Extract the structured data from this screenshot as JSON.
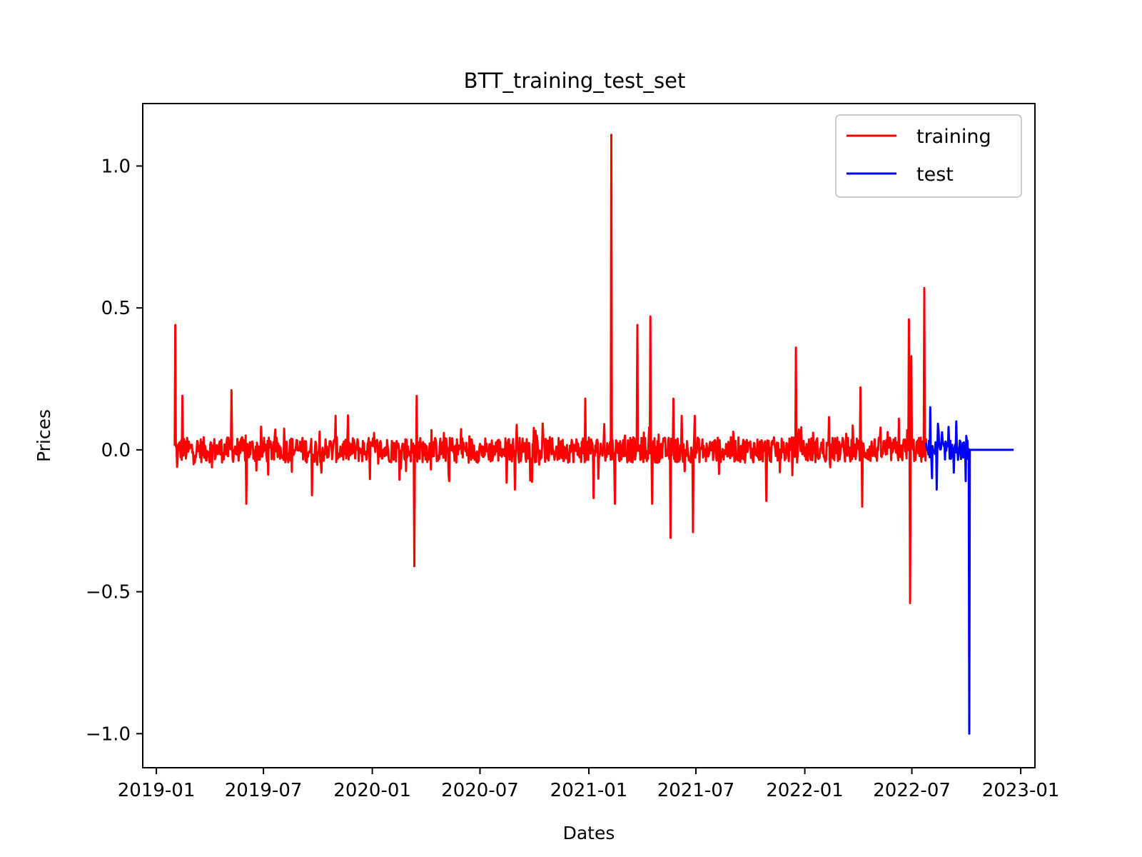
{
  "chart_data": {
    "type": "line",
    "title": "BTT_training_test_set",
    "xlabel": "Dates",
    "ylabel": "Prices",
    "ylim": [
      -1.12,
      1.22
    ],
    "xlim": [
      "2018-12-09",
      "2023-01-25"
    ],
    "x_ticks": [
      "2019-01",
      "2019-07",
      "2020-01",
      "2020-07",
      "2021-01",
      "2021-07",
      "2022-01",
      "2022-07",
      "2023-01"
    ],
    "y_ticks": [
      1.0,
      0.5,
      0.0,
      -0.5,
      -1.0
    ],
    "y_tick_labels": [
      "1.0",
      "0.5",
      "0.0",
      "−0.5",
      "−1.0"
    ],
    "grid": false,
    "legend_position": "top-right",
    "series": [
      {
        "name": "training",
        "color": "#ff0000",
        "x_start": "2019-02-01",
        "x_end": "2022-07-25",
        "spikes": [
          {
            "date": "2019-02-02",
            "value": 0.44
          },
          {
            "date": "2019-02-05",
            "value": -0.06
          },
          {
            "date": "2019-02-14",
            "value": 0.19
          },
          {
            "date": "2019-05-08",
            "value": 0.21
          },
          {
            "date": "2019-06-02",
            "value": -0.19
          },
          {
            "date": "2019-09-21",
            "value": -0.16
          },
          {
            "date": "2019-10-31",
            "value": 0.12
          },
          {
            "date": "2020-03-12",
            "value": -0.41
          },
          {
            "date": "2020-03-16",
            "value": 0.19
          },
          {
            "date": "2020-05-10",
            "value": -0.11
          },
          {
            "date": "2020-08-29",
            "value": -0.14
          },
          {
            "date": "2020-12-26",
            "value": 0.18
          },
          {
            "date": "2021-01-09",
            "value": -0.17
          },
          {
            "date": "2021-02-08",
            "value": 1.11
          },
          {
            "date": "2021-02-14",
            "value": -0.19
          },
          {
            "date": "2021-03-24",
            "value": 0.44
          },
          {
            "date": "2021-04-15",
            "value": 0.47
          },
          {
            "date": "2021-04-18",
            "value": -0.19
          },
          {
            "date": "2021-05-19",
            "value": -0.31
          },
          {
            "date": "2021-05-24",
            "value": 0.18
          },
          {
            "date": "2021-06-26",
            "value": -0.29
          },
          {
            "date": "2021-06-29",
            "value": 0.12
          },
          {
            "date": "2021-10-28",
            "value": -0.18
          },
          {
            "date": "2021-12-17",
            "value": 0.36
          },
          {
            "date": "2022-04-05",
            "value": 0.22
          },
          {
            "date": "2022-04-08",
            "value": -0.2
          },
          {
            "date": "2022-06-09",
            "value": 0.11
          },
          {
            "date": "2022-06-26",
            "value": 0.46
          },
          {
            "date": "2022-06-28",
            "value": -0.54
          },
          {
            "date": "2022-06-30",
            "value": 0.33
          },
          {
            "date": "2022-07-22",
            "value": 0.57
          }
        ]
      },
      {
        "name": "test",
        "color": "#0000ff",
        "x_start": "2022-07-25",
        "x_end": "2022-12-20",
        "spikes": [
          {
            "date": "2022-08-01",
            "value": 0.15
          },
          {
            "date": "2022-08-04",
            "value": -0.1
          },
          {
            "date": "2022-08-12",
            "value": -0.14
          },
          {
            "date": "2022-08-15",
            "value": 0.07
          },
          {
            "date": "2022-09-10",
            "value": -0.08
          },
          {
            "date": "2022-09-14",
            "value": 0.1
          },
          {
            "date": "2022-09-30",
            "value": -0.11
          },
          {
            "date": "2022-10-06",
            "value": -1.0
          },
          {
            "date": "2022-10-07",
            "value": 0.0
          }
        ]
      }
    ]
  }
}
